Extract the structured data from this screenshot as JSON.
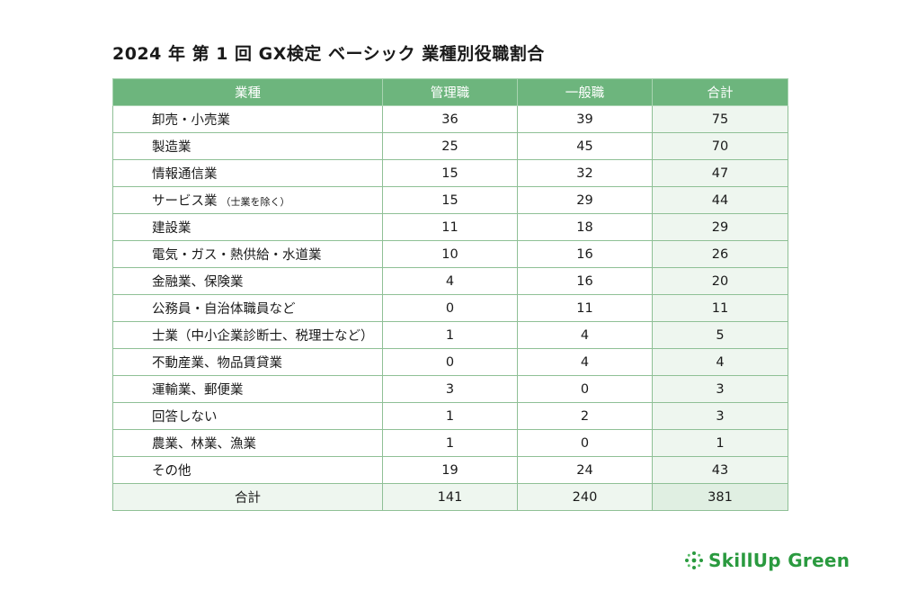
{
  "title": "2024 年 第 1 回 GX検定 ベーシック 業種別役職割合",
  "table": {
    "headers": [
      "業種",
      "管理職",
      "一般職",
      "合計"
    ],
    "rows": [
      {
        "category": "卸売・小売業",
        "note": "",
        "manager": "36",
        "general": "39",
        "total": "75"
      },
      {
        "category": "製造業",
        "note": "",
        "manager": "25",
        "general": "45",
        "total": "70"
      },
      {
        "category": "情報通信業",
        "note": "",
        "manager": "15",
        "general": "32",
        "total": "47"
      },
      {
        "category": "サービス業",
        "note": "（士業を除く）",
        "manager": "15",
        "general": "29",
        "total": "44"
      },
      {
        "category": "建設業",
        "note": "",
        "manager": "11",
        "general": "18",
        "total": "29"
      },
      {
        "category": "電気・ガス・熱供給・水道業",
        "note": "",
        "manager": "10",
        "general": "16",
        "total": "26"
      },
      {
        "category": "金融業、保険業",
        "note": "",
        "manager": "4",
        "general": "16",
        "total": "20"
      },
      {
        "category": "公務員・自治体職員など",
        "note": "",
        "manager": "0",
        "general": "11",
        "total": "11"
      },
      {
        "category": "士業（中小企業診断士、税理士など）",
        "note": "",
        "manager": "1",
        "general": "4",
        "total": "5"
      },
      {
        "category": "不動産業、物品賃貸業",
        "note": "",
        "manager": "0",
        "general": "4",
        "total": "4"
      },
      {
        "category": "運輸業、郵便業",
        "note": "",
        "manager": "3",
        "general": "0",
        "total": "3"
      },
      {
        "category": "回答しない",
        "note": "",
        "manager": "1",
        "general": "2",
        "total": "3"
      },
      {
        "category": "農業、林業、漁業",
        "note": "",
        "manager": "1",
        "general": "0",
        "total": "1"
      },
      {
        "category": "その他",
        "note": "",
        "manager": "19",
        "general": "24",
        "total": "43"
      }
    ],
    "sum_row": {
      "category": "合計",
      "manager": "141",
      "general": "240",
      "total": "381"
    }
  },
  "logo": {
    "text": "SkillUp Green",
    "icon": "sparkle-dots-icon"
  },
  "colors": {
    "header_bg": "#6db57d",
    "border": "#8fc096",
    "total_bg": "#eef6ef",
    "logo_green": "#2a9a3f"
  }
}
